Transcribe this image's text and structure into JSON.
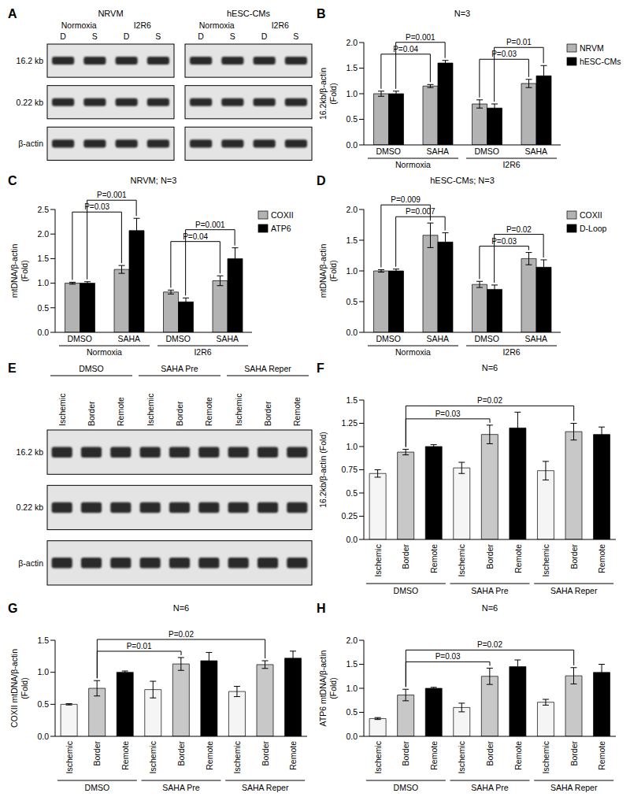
{
  "chart_data": [
    {
      "panel": "B",
      "type": "bar",
      "title": "N=3",
      "ylabel": [
        "16.2kb/β-actin",
        "(Fold)"
      ],
      "categories": [
        "DMSO",
        "SAHA",
        "DMSO",
        "SAHA"
      ],
      "group_labels": [
        "Normoxia",
        "I2R6"
      ],
      "series": [
        {
          "name": "NRVM",
          "color": "#b3b3b3",
          "values": [
            1.0,
            1.15,
            0.8,
            1.2
          ],
          "errors": [
            0.05,
            0.03,
            0.08,
            0.08
          ]
        },
        {
          "name": "hESC-CMs",
          "color": "#000000",
          "values": [
            1.0,
            1.6,
            0.72,
            1.35
          ],
          "errors": [
            0.05,
            0.05,
            0.08,
            0.2
          ]
        }
      ],
      "ylim": [
        0,
        2
      ],
      "yticks": [
        {
          "value": 0,
          "label": "0.0"
        },
        0.5,
        {
          "value": 1,
          "label": "1.0"
        },
        1.5,
        {
          "value": 2,
          "label": "2.0"
        }
      ],
      "legend": "upper right",
      "comparisons": [
        {
          "label": "P=0.04",
          "from": [
            0,
            0
          ],
          "to": [
            0,
            1
          ]
        },
        {
          "label": "P=0.001",
          "from": [
            1,
            0
          ],
          "to": [
            1,
            1
          ]
        },
        {
          "label": "P=0.03",
          "from": [
            0,
            2
          ],
          "to": [
            0,
            3
          ]
        },
        {
          "label": "P=0.01",
          "from": [
            1,
            2
          ],
          "to": [
            1,
            3
          ]
        }
      ]
    },
    {
      "panel": "C",
      "type": "bar",
      "title": "NRVM; N=3",
      "ylabel": [
        "mtDNA/β-actin",
        "(Fold)"
      ],
      "categories": [
        "DMSO",
        "SAHA",
        "DMSO",
        "SAHA"
      ],
      "group_labels": [
        "Normoxia",
        "I2R6"
      ],
      "series": [
        {
          "name": "COXII",
          "color": "#b3b3b3",
          "values": [
            1.0,
            1.28,
            0.82,
            1.05
          ],
          "errors": [
            0.02,
            0.08,
            0.04,
            0.1
          ]
        },
        {
          "name": "ATP6",
          "color": "#000000",
          "values": [
            1.0,
            2.07,
            0.62,
            1.5
          ],
          "errors": [
            0.03,
            0.25,
            0.08,
            0.22
          ]
        }
      ],
      "ylim": [
        0,
        2.5
      ],
      "yticks": [
        {
          "value": 0,
          "label": "0.0"
        },
        0.5,
        {
          "value": 1,
          "label": "1.0"
        },
        1.5,
        {
          "value": 2,
          "label": "2.0"
        },
        2.5
      ],
      "legend": "upper right",
      "comparisons": [
        {
          "label": "P=0.03",
          "from": [
            0,
            0
          ],
          "to": [
            0,
            1
          ]
        },
        {
          "label": "P=0.001",
          "from": [
            1,
            0
          ],
          "to": [
            1,
            1
          ]
        },
        {
          "label": "P=0.04",
          "from": [
            0,
            2
          ],
          "to": [
            0,
            3
          ]
        },
        {
          "label": "P=0.001",
          "from": [
            1,
            2
          ],
          "to": [
            1,
            3
          ]
        }
      ]
    },
    {
      "panel": "D",
      "type": "bar",
      "title": "hESC-CMs; N=3",
      "ylabel": [
        "mtDNA/β-actin",
        "(Fold)"
      ],
      "categories": [
        "DMSO",
        "SAHA",
        "DMSO",
        "SAHA"
      ],
      "group_labels": [
        "Normoxia",
        "I2R6"
      ],
      "series": [
        {
          "name": "COXII",
          "color": "#b3b3b3",
          "values": [
            1.0,
            1.58,
            0.78,
            1.2
          ],
          "errors": [
            0.02,
            0.2,
            0.05,
            0.1
          ]
        },
        {
          "name": "D-Loop",
          "color": "#000000",
          "values": [
            1.0,
            1.47,
            0.7,
            1.06
          ],
          "errors": [
            0.03,
            0.15,
            0.07,
            0.12
          ]
        }
      ],
      "ylim": [
        0,
        2
      ],
      "yticks": [
        {
          "value": 0,
          "label": "0.0"
        },
        0.5,
        {
          "value": 1,
          "label": "1.0"
        },
        1.5,
        {
          "value": 2,
          "label": "2.0"
        }
      ],
      "legend": "upper right",
      "comparisons": [
        {
          "label": "P=0.007",
          "from": [
            1,
            0
          ],
          "to": [
            1,
            1
          ]
        },
        {
          "label": "P=0.009",
          "from": [
            0,
            0
          ],
          "to": [
            0,
            1
          ]
        },
        {
          "label": "P=0.03",
          "from": [
            0,
            2
          ],
          "to": [
            0,
            3
          ]
        },
        {
          "label": "P=0.02",
          "from": [
            1,
            2
          ],
          "to": [
            1,
            3
          ]
        }
      ]
    },
    {
      "panel": "F",
      "type": "bar",
      "title": "N=6",
      "ylabel": [
        "16.2kb/β-actin (Fold)"
      ],
      "categories": [
        "Ischemic",
        "Border",
        "Remote",
        "Ischemic",
        "Border",
        "Remote",
        "Ischemic",
        "Border",
        "Remote"
      ],
      "group_labels": [
        "DMSO",
        "SAHA Pre",
        "SAHA Reper"
      ],
      "values": [
        0.71,
        0.94,
        1.0,
        0.77,
        1.13,
        1.2,
        0.74,
        1.16,
        1.13
      ],
      "errors": [
        0.04,
        0.03,
        0.02,
        0.06,
        0.1,
        0.17,
        0.1,
        0.09,
        0.08
      ],
      "colors": [
        "#f5f5f5",
        "#c8c8c8",
        "#000000",
        "#f5f5f5",
        "#c8c8c8",
        "#000000",
        "#f5f5f5",
        "#c8c8c8",
        "#000000"
      ],
      "ylim": [
        0,
        1.5
      ],
      "yticks": [
        {
          "value": 0,
          "label": "0.0"
        },
        0.25,
        0.5,
        0.75,
        {
          "value": 1,
          "label": "1.0"
        },
        1.25,
        1.5
      ],
      "comparisons": [
        {
          "label": "P=0.03",
          "from": [
            0,
            1
          ],
          "to": [
            0,
            4
          ]
        },
        {
          "label": "P=0.02",
          "from": [
            0,
            1
          ],
          "to": [
            0,
            7
          ]
        }
      ]
    },
    {
      "panel": "G",
      "type": "bar",
      "title": "N=6",
      "ylabel": [
        "COXII mtDNA/β-actin",
        "(Fold)"
      ],
      "categories": [
        "Ischemic",
        "Border",
        "Remote",
        "Ischemic",
        "Border",
        "Remote",
        "Ischemic",
        "Border",
        "Remote"
      ],
      "group_labels": [
        "DMSO",
        "SAHA Pre",
        "SAHA Reper"
      ],
      "values": [
        0.5,
        0.75,
        1.0,
        0.73,
        1.13,
        1.18,
        0.7,
        1.12,
        1.22
      ],
      "errors": [
        0.01,
        0.12,
        0.02,
        0.13,
        0.1,
        0.13,
        0.08,
        0.06,
        0.11
      ],
      "colors": [
        "#f5f5f5",
        "#c8c8c8",
        "#000000",
        "#f5f5f5",
        "#c8c8c8",
        "#000000",
        "#f5f5f5",
        "#c8c8c8",
        "#000000"
      ],
      "ylim": [
        0,
        1.5
      ],
      "yticks": [
        {
          "value": 0,
          "label": "0.0"
        },
        0.5,
        {
          "value": 1,
          "label": "1.0"
        },
        1.5
      ],
      "comparisons": [
        {
          "label": "P=0.01",
          "from": [
            0,
            1
          ],
          "to": [
            0,
            4
          ]
        },
        {
          "label": "P=0.02",
          "from": [
            0,
            1
          ],
          "to": [
            0,
            7
          ]
        }
      ]
    },
    {
      "panel": "H",
      "type": "bar",
      "title": "N=6",
      "ylabel": [
        "ATP6 mtDNA/β-actin",
        "(Fold)"
      ],
      "categories": [
        "Ischemic",
        "Border",
        "Remote",
        "Ischemic",
        "Border",
        "Remote",
        "Ischemic",
        "Border",
        "Remote"
      ],
      "group_labels": [
        "DMSO",
        "SAHA Pre",
        "SAHA Reper"
      ],
      "values": [
        0.37,
        0.86,
        1.0,
        0.6,
        1.25,
        1.45,
        0.71,
        1.26,
        1.33
      ],
      "errors": [
        0.02,
        0.12,
        0.02,
        0.09,
        0.17,
        0.14,
        0.06,
        0.17,
        0.17
      ],
      "colors": [
        "#f5f5f5",
        "#c8c8c8",
        "#000000",
        "#f5f5f5",
        "#c8c8c8",
        "#000000",
        "#f5f5f5",
        "#c8c8c8",
        "#000000"
      ],
      "ylim": [
        0,
        2
      ],
      "yticks": [
        {
          "value": 0,
          "label": "0.0"
        },
        0.5,
        {
          "value": 1,
          "label": "1.0"
        },
        1.5,
        {
          "value": 2,
          "label": "2.0"
        }
      ],
      "comparisons": [
        {
          "label": "P=0.03",
          "from": [
            0,
            1
          ],
          "to": [
            0,
            4
          ]
        },
        {
          "label": "P=0.02",
          "from": [
            0,
            1
          ],
          "to": [
            0,
            7
          ]
        }
      ]
    }
  ],
  "blots": [
    {
      "panel": "A",
      "row_labels": [
        "16.2 kb",
        "0.22 kb",
        "β-actin"
      ],
      "blocks": [
        {
          "title": "NRVM",
          "groups": [
            {
              "label": "Normoxia",
              "lanes": [
                "D",
                "S"
              ]
            },
            {
              "label": "I2R6",
              "lanes": [
                "D",
                "S"
              ]
            }
          ]
        },
        {
          "title": "hESC-CMs",
          "groups": [
            {
              "label": "Normoxia",
              "lanes": [
                "D",
                "S"
              ]
            },
            {
              "label": "I2R6",
              "lanes": [
                "D",
                "S"
              ]
            }
          ]
        }
      ]
    },
    {
      "panel": "E",
      "row_labels": [
        "16.2 kb",
        "0.22 kb",
        "β-actin"
      ],
      "blocks": [
        {
          "groups": [
            {
              "label": "DMSO",
              "lanes": [
                "Ischemic",
                "Border",
                "Remote"
              ]
            },
            {
              "label": "SAHA Pre",
              "lanes": [
                "Ischemic",
                "Border",
                "Remote"
              ]
            },
            {
              "label": "SAHA Reper",
              "lanes": [
                "Ischemic",
                "Border",
                "Remote"
              ]
            }
          ]
        }
      ]
    }
  ]
}
